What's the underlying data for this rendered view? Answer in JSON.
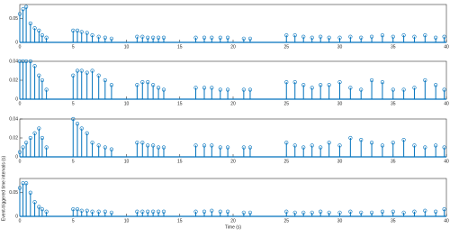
{
  "chart_data": [
    {
      "type": "stem",
      "color": "#0072bd",
      "x": [
        0,
        0.3,
        0.6,
        1.0,
        1.4,
        1.8,
        2.1,
        2.5,
        5,
        5.4,
        5.8,
        6.3,
        6.8,
        7.4,
        8,
        8.6,
        11,
        11.5,
        12,
        12.5,
        13,
        13.5,
        16.5,
        17.3,
        18,
        18.8,
        19.5,
        21,
        21.6,
        25,
        25.8,
        26.6,
        27.4,
        28.2,
        29,
        30,
        31,
        32,
        33,
        34,
        35,
        36,
        37,
        38,
        39,
        39.8
      ],
      "values": [
        0.06,
        0.07,
        0.075,
        0.04,
        0.03,
        0.025,
        0.015,
        0.01,
        0.025,
        0.025,
        0.022,
        0.02,
        0.015,
        0.012,
        0.01,
        0.008,
        0.012,
        0.012,
        0.01,
        0.01,
        0.01,
        0.01,
        0.01,
        0.01,
        0.01,
        0.01,
        0.01,
        0.008,
        0.008,
        0.015,
        0.015,
        0.012,
        0.01,
        0.012,
        0.01,
        0.01,
        0.012,
        0.01,
        0.012,
        0.015,
        0.012,
        0.015,
        0.012,
        0.015,
        0.01,
        0.012
      ],
      "xlim": [
        0,
        40
      ],
      "xticks": [
        0,
        5,
        10,
        15,
        20,
        25,
        30,
        35,
        40
      ],
      "ylim": [
        0,
        0.08
      ],
      "yticks": [
        0,
        0.05
      ]
    },
    {
      "type": "stem",
      "color": "#0072bd",
      "x": [
        0,
        0.3,
        0.6,
        1.0,
        1.4,
        1.8,
        2.1,
        2.5,
        5,
        5.4,
        5.8,
        6.3,
        6.8,
        7.4,
        8,
        8.6,
        11,
        11.5,
        12,
        12.5,
        13,
        13.5,
        16.5,
        17.3,
        18,
        18.8,
        19.5,
        21,
        21.6,
        25,
        25.8,
        26.6,
        27.4,
        28.2,
        29,
        30,
        31,
        32,
        33,
        34,
        35,
        36,
        37,
        38,
        39,
        39.8
      ],
      "values": [
        0.04,
        0.04,
        0.04,
        0.04,
        0.035,
        0.025,
        0.02,
        0.01,
        0.025,
        0.03,
        0.03,
        0.028,
        0.03,
        0.025,
        0.02,
        0.015,
        0.015,
        0.018,
        0.018,
        0.015,
        0.012,
        0.01,
        0.012,
        0.012,
        0.012,
        0.01,
        0.01,
        0.01,
        0.01,
        0.018,
        0.018,
        0.015,
        0.012,
        0.015,
        0.015,
        0.018,
        0.012,
        0.01,
        0.02,
        0.018,
        0.01,
        0.01,
        0.012,
        0.02,
        0.015,
        0.01
      ],
      "xlim": [
        0,
        40
      ],
      "xticks": [
        0,
        5,
        10,
        15,
        20,
        25,
        30,
        35,
        40
      ],
      "ylim": [
        0,
        0.04
      ],
      "yticks": [
        0,
        0.02,
        0.04
      ]
    },
    {
      "type": "stem",
      "color": "#0072bd",
      "x": [
        0,
        0.3,
        0.6,
        1.0,
        1.4,
        1.8,
        2.1,
        2.5,
        5,
        5.4,
        5.8,
        6.3,
        6.8,
        7.4,
        8,
        8.6,
        11,
        11.5,
        12,
        12.5,
        13,
        13.5,
        16.5,
        17.3,
        18,
        18.8,
        19.5,
        21,
        21.6,
        25,
        25.8,
        26.6,
        27.4,
        28.2,
        29,
        30,
        31,
        32,
        33,
        34,
        35,
        36,
        37,
        38,
        39,
        39.8
      ],
      "values": [
        0.005,
        0.01,
        0.015,
        0.02,
        0.025,
        0.03,
        0.02,
        0.01,
        0.04,
        0.035,
        0.03,
        0.025,
        0.015,
        0.012,
        0.01,
        0.008,
        0.015,
        0.015,
        0.012,
        0.012,
        0.01,
        0.01,
        0.012,
        0.012,
        0.012,
        0.01,
        0.01,
        0.01,
        0.01,
        0.015,
        0.012,
        0.01,
        0.012,
        0.01,
        0.015,
        0.012,
        0.02,
        0.018,
        0.015,
        0.012,
        0.015,
        0.018,
        0.012,
        0.01,
        0.012,
        0.01
      ],
      "xlim": [
        0,
        40
      ],
      "xticks": [
        0,
        5,
        10,
        15,
        20,
        25,
        30,
        35,
        40
      ],
      "ylim": [
        0,
        0.04
      ],
      "yticks": [
        0,
        0.02,
        0.04
      ]
    },
    {
      "type": "stem",
      "color": "#0072bd",
      "x": [
        0,
        0.3,
        0.6,
        1.0,
        1.4,
        1.8,
        2.1,
        2.5,
        5,
        5.4,
        5.8,
        6.3,
        6.8,
        7.4,
        8,
        8.6,
        11,
        11.5,
        12,
        12.5,
        13,
        13.5,
        16.5,
        17.3,
        18,
        18.8,
        19.5,
        21,
        21.6,
        25,
        25.8,
        26.6,
        27.4,
        28.2,
        29,
        30,
        31,
        32,
        33,
        34,
        35,
        36,
        37,
        38,
        39,
        39.8
      ],
      "values": [
        0.06,
        0.07,
        0.07,
        0.05,
        0.03,
        0.02,
        0.015,
        0.01,
        0.015,
        0.015,
        0.012,
        0.012,
        0.01,
        0.01,
        0.01,
        0.008,
        0.01,
        0.01,
        0.01,
        0.01,
        0.01,
        0.01,
        0.01,
        0.01,
        0.012,
        0.01,
        0.01,
        0.008,
        0.008,
        0.01,
        0.008,
        0.008,
        0.008,
        0.01,
        0.008,
        0.008,
        0.01,
        0.008,
        0.008,
        0.01,
        0.01,
        0.008,
        0.01,
        0.012,
        0.01,
        0.015
      ],
      "xlim": [
        0,
        40
      ],
      "xticks": [
        0,
        5,
        10,
        15,
        20,
        25,
        30,
        35,
        40
      ],
      "ylim": [
        0,
        0.08
      ],
      "yticks": [
        0,
        0.05
      ],
      "xlabel": "Time (s)",
      "ylabel": "Event-triggered time intervals (s)"
    }
  ]
}
